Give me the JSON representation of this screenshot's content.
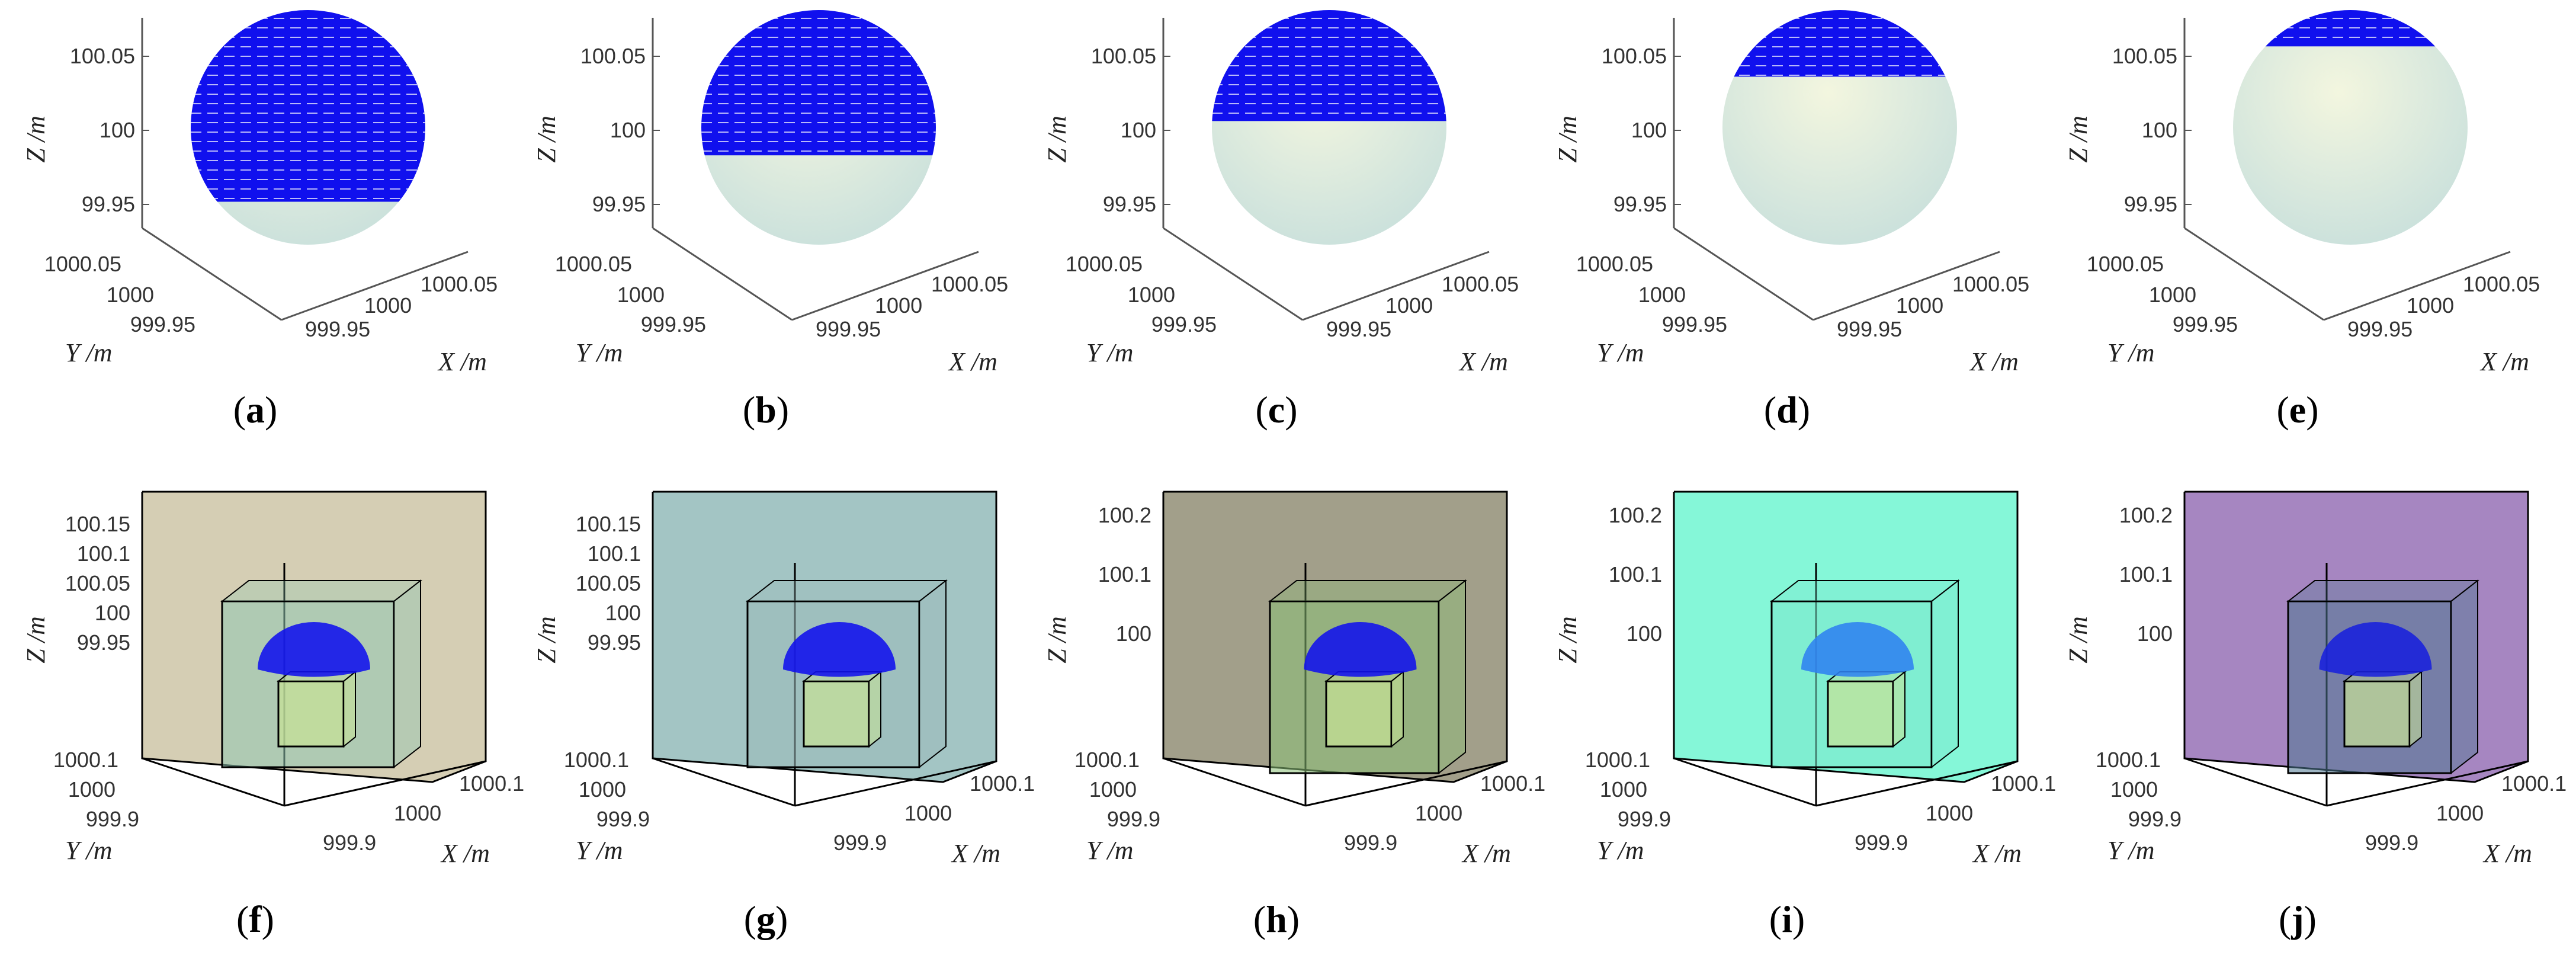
{
  "axis_labels": {
    "x": "X /m",
    "y": "Y /m",
    "z": "Z /m"
  },
  "colors": {
    "cap": "#1010ee",
    "sphere": "#dbeadf",
    "inner_box": "#8fc7b2",
    "innermost_box": "#c7e296",
    "f_outer": "#d5ceb4",
    "g_outer": "#a3c5c4",
    "h_outer": "#a29f8a",
    "h_inner": "#8bbf77",
    "i_outer": "#85f7d8",
    "i_cap": "#2f82f0",
    "j_outer": "#a686c1",
    "j_inner": "#4e7891",
    "j_cap": "#1820dd"
  },
  "top_row": [
    {
      "caption": "a",
      "cap_level": 0.95,
      "z_ticks": [
        "100.05",
        "100",
        "99.95"
      ],
      "y_ticks": [
        "1000.05",
        "1000",
        "999.95"
      ],
      "x_ticks": [
        "1000.05",
        "1000",
        "999.95"
      ]
    },
    {
      "caption": "b",
      "cap_level": 0.72,
      "z_ticks": [
        "100.05",
        "100",
        "99.95"
      ],
      "y_ticks": [
        "1000.05",
        "1000",
        "999.95"
      ],
      "x_ticks": [
        "1000.05",
        "1000",
        "999.95"
      ]
    },
    {
      "caption": "c",
      "cap_level": 0.55,
      "z_ticks": [
        "100.05",
        "100",
        "99.95"
      ],
      "y_ticks": [
        "1000.05",
        "1000",
        "999.95"
      ],
      "x_ticks": [
        "1000.05",
        "1000",
        "999.95"
      ]
    },
    {
      "caption": "d",
      "cap_level": 0.33,
      "z_ticks": [
        "100.05",
        "100",
        "99.95"
      ],
      "y_ticks": [
        "1000.05",
        "1000",
        "999.95"
      ],
      "x_ticks": [
        "1000.05",
        "1000",
        "999.95"
      ]
    },
    {
      "caption": "e",
      "cap_level": 0.18,
      "z_ticks": [
        "100.05",
        "100",
        "99.95"
      ],
      "y_ticks": [
        "1000.05",
        "1000",
        "999.95"
      ],
      "x_ticks": [
        "1000.05",
        "1000",
        "999.95"
      ]
    }
  ],
  "bottom_row": [
    {
      "caption": "f",
      "z_ticks": [
        "100.15",
        "100.1",
        "100.05",
        "100",
        "99.95"
      ],
      "y_ticks": [
        "1000.1",
        "1000",
        "999.9"
      ],
      "x_ticks": [
        "1000.1",
        "1000",
        "999.9"
      ]
    },
    {
      "caption": "g",
      "z_ticks": [
        "100.15",
        "100.1",
        "100.05",
        "100",
        "99.95"
      ],
      "y_ticks": [
        "1000.1",
        "1000",
        "999.9"
      ],
      "x_ticks": [
        "1000.1",
        "1000",
        "999.9"
      ]
    },
    {
      "caption": "h",
      "z_ticks": [
        "100.2",
        "100.1",
        "100"
      ],
      "y_ticks": [
        "1000.1",
        "1000",
        "999.9"
      ],
      "x_ticks": [
        "1000.1",
        "1000",
        "999.9"
      ]
    },
    {
      "caption": "i",
      "z_ticks": [
        "100.2",
        "100.1",
        "100"
      ],
      "y_ticks": [
        "1000.1",
        "1000",
        "999.9"
      ],
      "x_ticks": [
        "1000.1",
        "1000",
        "999.9"
      ]
    },
    {
      "caption": "j",
      "z_ticks": [
        "100.2",
        "100.1",
        "100"
      ],
      "y_ticks": [
        "1000.1",
        "1000",
        "999.9"
      ],
      "x_ticks": [
        "1000.1",
        "1000",
        "999.9"
      ]
    }
  ]
}
